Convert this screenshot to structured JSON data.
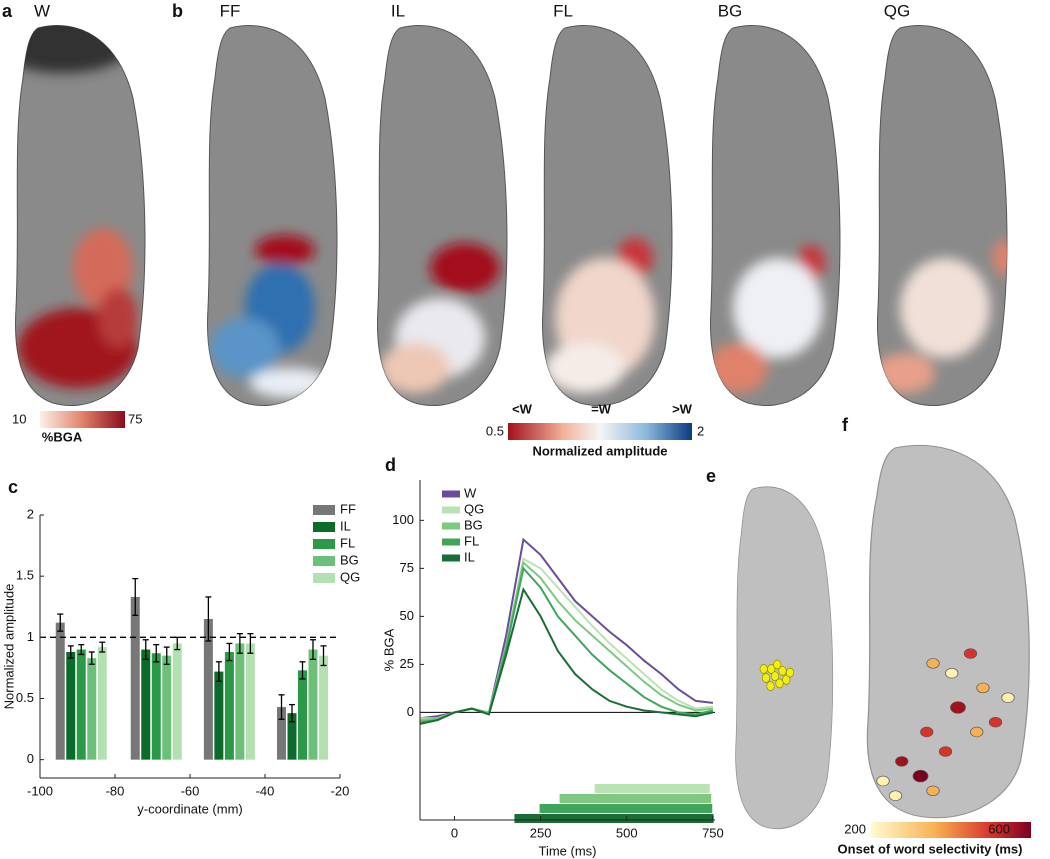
{
  "figure": {
    "panel_labels": [
      "a",
      "b",
      "c",
      "d",
      "e",
      "f"
    ],
    "panel_a": {
      "title": "W",
      "colorbar": {
        "min": 10,
        "max": 75,
        "label": "%BGA"
      }
    },
    "panel_b": {
      "titles": [
        "FF",
        "IL",
        "FL",
        "BG",
        "QG"
      ],
      "colorbar": {
        "markers": [
          "<W",
          "=W",
          ">W"
        ],
        "min": 0.5,
        "max": 2,
        "label": "Normalized amplitude"
      }
    },
    "panel_f": {
      "colorbar": {
        "min": 200,
        "max": 600,
        "label": "Onset of word selectivity (ms)"
      }
    }
  },
  "chart_data": [
    {
      "type": "bar",
      "x": [
        -89,
        -69,
        -49.5,
        -30
      ],
      "xlim": [
        -100,
        -20
      ],
      "xticks": [
        -100,
        -80,
        -60,
        -40,
        -20
      ],
      "ylim": [
        -0.15,
        2
      ],
      "yticks": [
        0,
        0.5,
        1,
        1.5,
        2
      ],
      "reference_line": 1,
      "x_label": "y-coordinate (mm)",
      "y_label": "Normalized amplitude",
      "series": [
        {
          "name": "FF",
          "color": "#777777",
          "values": [
            1.12,
            1.33,
            1.15,
            0.43
          ],
          "errors": [
            0.07,
            0.15,
            0.18,
            0.1
          ]
        },
        {
          "name": "IL",
          "color": "#0b6b2a",
          "values": [
            0.88,
            0.9,
            0.72,
            0.38
          ],
          "errors": [
            0.05,
            0.08,
            0.08,
            0.07
          ]
        },
        {
          "name": "FL",
          "color": "#2a9a48",
          "values": [
            0.9,
            0.87,
            0.88,
            0.73
          ],
          "errors": [
            0.04,
            0.07,
            0.07,
            0.07
          ]
        },
        {
          "name": "BG",
          "color": "#6cc07a",
          "values": [
            0.83,
            0.85,
            0.95,
            0.9
          ],
          "errors": [
            0.05,
            0.07,
            0.08,
            0.08
          ]
        },
        {
          "name": "QG",
          "color": "#b3e0b0",
          "values": [
            0.92,
            0.95,
            0.95,
            0.85
          ],
          "errors": [
            0.04,
            0.05,
            0.08,
            0.08
          ]
        }
      ]
    },
    {
      "type": "line",
      "x": [
        -100,
        -50,
        0,
        50,
        100,
        150,
        200,
        250,
        300,
        350,
        400,
        450,
        500,
        550,
        600,
        650,
        700,
        750
      ],
      "xlim": [
        -100,
        756
      ],
      "xticks": [
        0,
        250,
        500,
        750
      ],
      "ylim": [
        -56,
        121
      ],
      "yticks": [
        0,
        25,
        50,
        75,
        100
      ],
      "x_label": "Time (ms)",
      "y_label": "% BGA",
      "series": [
        {
          "name": "W",
          "color": "#6a4c9c",
          "values": [
            -3,
            -2,
            0,
            2,
            0,
            40,
            90,
            82,
            70,
            58,
            50,
            42,
            35,
            27,
            20,
            12,
            6,
            5
          ]
        },
        {
          "name": "QG",
          "color": "#b8e3b2",
          "values": [
            -3,
            -3,
            0,
            2,
            0,
            35,
            80,
            75,
            65,
            55,
            45,
            36,
            28,
            20,
            12,
            6,
            2,
            3
          ],
          "significant": [
            407,
            741
          ]
        },
        {
          "name": "BG",
          "color": "#7ec87f",
          "values": [
            -4,
            -3,
            0,
            2,
            0,
            35,
            78,
            70,
            58,
            48,
            40,
            32,
            24,
            16,
            9,
            4,
            1,
            2
          ],
          "significant": [
            305,
            745
          ]
        },
        {
          "name": "FL",
          "color": "#3fa55a",
          "values": [
            -5,
            -4,
            0,
            2,
            -1,
            33,
            75,
            65,
            50,
            40,
            30,
            22,
            15,
            8,
            3,
            0,
            -1,
            1
          ],
          "significant": [
            247,
            748
          ]
        },
        {
          "name": "IL",
          "color": "#1a6e35",
          "values": [
            -6,
            -4,
            0,
            2,
            -1,
            30,
            64,
            50,
            32,
            20,
            12,
            6,
            3,
            1,
            0,
            -1,
            -2,
            0
          ],
          "significant": [
            174,
            752
          ]
        }
      ]
    }
  ]
}
